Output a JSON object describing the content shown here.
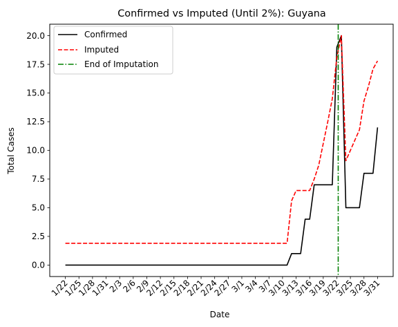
{
  "chart_data": {
    "type": "line",
    "title": "Confirmed vs Imputed (Until 2%): Guyana",
    "xlabel": "Date",
    "ylabel": "Total Cases",
    "ylim": [
      -1.0,
      21.0
    ],
    "yticks": [
      "0.0",
      "2.5",
      "5.0",
      "7.5",
      "10.0",
      "12.5",
      "15.0",
      "17.5",
      "20.0"
    ],
    "x_tick_labels": [
      "1/22",
      "1/25",
      "1/28",
      "1/31",
      "2/3",
      "2/6",
      "2/9",
      "2/12",
      "2/15",
      "2/18",
      "2/21",
      "2/24",
      "2/27",
      "3/1",
      "3/4",
      "3/7",
      "3/10",
      "3/13",
      "3/16",
      "3/19",
      "3/22",
      "3/25",
      "3/28",
      "3/31"
    ],
    "x": [
      "1/22",
      "1/23",
      "1/24",
      "1/25",
      "1/26",
      "1/27",
      "1/28",
      "1/29",
      "1/30",
      "1/31",
      "2/1",
      "2/2",
      "2/3",
      "2/4",
      "2/5",
      "2/6",
      "2/7",
      "2/8",
      "2/9",
      "2/10",
      "2/11",
      "2/12",
      "2/13",
      "2/14",
      "2/15",
      "2/16",
      "2/17",
      "2/18",
      "2/19",
      "2/20",
      "2/21",
      "2/22",
      "2/23",
      "2/24",
      "2/25",
      "2/26",
      "2/27",
      "2/28",
      "2/29",
      "3/1",
      "3/2",
      "3/3",
      "3/4",
      "3/5",
      "3/6",
      "3/7",
      "3/8",
      "3/9",
      "3/10",
      "3/11",
      "3/12",
      "3/13",
      "3/14",
      "3/15",
      "3/16",
      "3/17",
      "3/18",
      "3/19",
      "3/20",
      "3/21",
      "3/22",
      "3/23",
      "3/24",
      "3/25",
      "3/26",
      "3/27",
      "3/28",
      "3/29",
      "3/30",
      "3/31"
    ],
    "grid": false,
    "legend_position": "top-left",
    "series": [
      {
        "name": "Confirmed",
        "color": "#000000",
        "dash": "solid",
        "values": [
          0,
          0,
          0,
          0,
          0,
          0,
          0,
          0,
          0,
          0,
          0,
          0,
          0,
          0,
          0,
          0,
          0,
          0,
          0,
          0,
          0,
          0,
          0,
          0,
          0,
          0,
          0,
          0,
          0,
          0,
          0,
          0,
          0,
          0,
          0,
          0,
          0,
          0,
          0,
          0,
          0,
          0,
          0,
          0,
          0,
          0,
          0,
          0,
          0,
          0,
          1,
          1,
          1,
          4,
          4,
          7,
          7,
          7,
          7,
          7,
          19,
          20,
          5,
          5,
          5,
          5,
          8,
          8,
          8,
          12
        ]
      },
      {
        "name": "Imputed",
        "color": "#ff0000",
        "dash": "dashed",
        "values": [
          1.9,
          1.9,
          1.9,
          1.9,
          1.9,
          1.9,
          1.9,
          1.9,
          1.9,
          1.9,
          1.9,
          1.9,
          1.9,
          1.9,
          1.9,
          1.9,
          1.9,
          1.9,
          1.9,
          1.9,
          1.9,
          1.9,
          1.9,
          1.9,
          1.9,
          1.9,
          1.9,
          1.9,
          1.9,
          1.9,
          1.9,
          1.9,
          1.9,
          1.9,
          1.9,
          1.9,
          1.9,
          1.9,
          1.9,
          1.9,
          1.9,
          1.9,
          1.9,
          1.9,
          1.9,
          1.9,
          1.9,
          1.9,
          1.9,
          1.9,
          5.6,
          6.5,
          6.5,
          6.5,
          6.5,
          7.5,
          8.7,
          10.6,
          12.5,
          14.5,
          18.1,
          20.0,
          9.1,
          10.0,
          10.9,
          11.8,
          14.3,
          15.6,
          17.1,
          17.8
        ]
      }
    ],
    "vline": {
      "name": "End of Imputation",
      "x": "3/22",
      "color": "#008000",
      "dash": "dashdot"
    }
  }
}
